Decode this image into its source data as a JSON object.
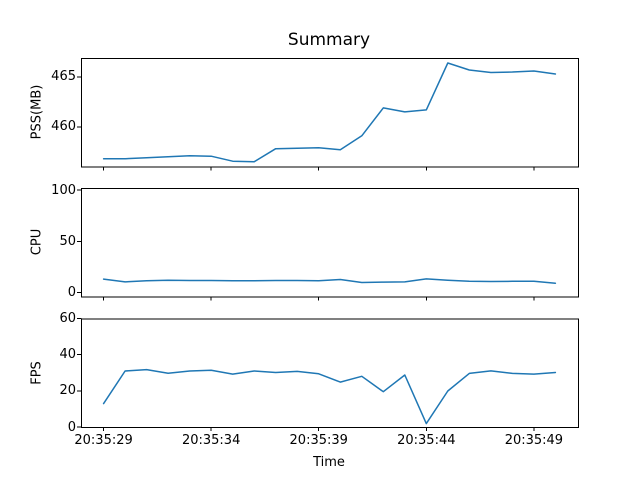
{
  "colors": {
    "line": "#1f77b4",
    "spine": "#000000",
    "text": "#000000",
    "background": "#ffffff"
  },
  "chart_data": [
    {
      "type": "line",
      "name": "pss",
      "title": "Summary",
      "ylabel": "PSS(MB)",
      "x": [
        "20:35:29",
        "20:35:30",
        "20:35:31",
        "20:35:32",
        "20:35:33",
        "20:35:34",
        "20:35:35",
        "20:35:36",
        "20:35:37",
        "20:35:38",
        "20:35:39",
        "20:35:40",
        "20:35:41",
        "20:35:42",
        "20:35:43",
        "20:35:44",
        "20:35:45",
        "20:35:46",
        "20:35:47",
        "20:35:48",
        "20:35:49",
        "20:35:50"
      ],
      "values": [
        456.8,
        456.8,
        456.9,
        457.0,
        457.1,
        457.05,
        456.55,
        456.5,
        457.8,
        457.85,
        457.9,
        457.7,
        459.1,
        461.9,
        461.5,
        461.7,
        466.4,
        465.7,
        465.45,
        465.5,
        465.6,
        465.3
      ],
      "ylim": [
        456.0,
        466.9
      ],
      "yticks": [
        460,
        465
      ],
      "xlim": [
        -1.05,
        22.05
      ],
      "grid": false,
      "legend": "none"
    },
    {
      "type": "line",
      "name": "cpu",
      "ylabel": "CPU",
      "x": [
        "20:35:29",
        "20:35:30",
        "20:35:31",
        "20:35:32",
        "20:35:33",
        "20:35:34",
        "20:35:35",
        "20:35:36",
        "20:35:37",
        "20:35:38",
        "20:35:39",
        "20:35:40",
        "20:35:41",
        "20:35:42",
        "20:35:43",
        "20:35:44",
        "20:35:45",
        "20:35:46",
        "20:35:47",
        "20:35:48",
        "20:35:49",
        "20:35:50"
      ],
      "values": [
        13.2,
        10.4,
        11.5,
        12.0,
        11.8,
        11.8,
        11.6,
        11.5,
        11.8,
        11.8,
        11.6,
        12.8,
        9.8,
        10.2,
        10.4,
        13.4,
        12.0,
        11.0,
        10.8,
        11.0,
        11.0,
        9.2
      ],
      "ylim": [
        -4,
        102
      ],
      "yticks": [
        0,
        50,
        100
      ],
      "xlim": [
        -1.05,
        22.05
      ],
      "grid": false,
      "legend": "none"
    },
    {
      "type": "line",
      "name": "fps",
      "ylabel": "FPS",
      "xlabel": "Time",
      "x": [
        "20:35:29",
        "20:35:30",
        "20:35:31",
        "20:35:32",
        "20:35:33",
        "20:35:34",
        "20:35:35",
        "20:35:36",
        "20:35:37",
        "20:35:38",
        "20:35:39",
        "20:35:40",
        "20:35:41",
        "20:35:42",
        "20:35:43",
        "20:35:44",
        "20:35:45",
        "20:35:46",
        "20:35:47",
        "20:35:48",
        "20:35:49",
        "20:35:50"
      ],
      "values": [
        13,
        31,
        31.8,
        29.8,
        31,
        31.4,
        29.3,
        31,
        30.2,
        30.8,
        29.5,
        24.9,
        28.1,
        19.6,
        28.8,
        2,
        20,
        29.7,
        31.1,
        29.7,
        29.3,
        30.2
      ],
      "ylim": [
        0,
        60
      ],
      "yticks": [
        0,
        20,
        40,
        60
      ],
      "xlim": [
        -1.05,
        22.05
      ],
      "xtick_indices": [
        0,
        5,
        10,
        15,
        20
      ],
      "xtick_labels": [
        "20:35:29",
        "20:35:34",
        "20:35:39",
        "20:35:44",
        "20:35:49"
      ],
      "grid": false,
      "legend": "none"
    }
  ]
}
